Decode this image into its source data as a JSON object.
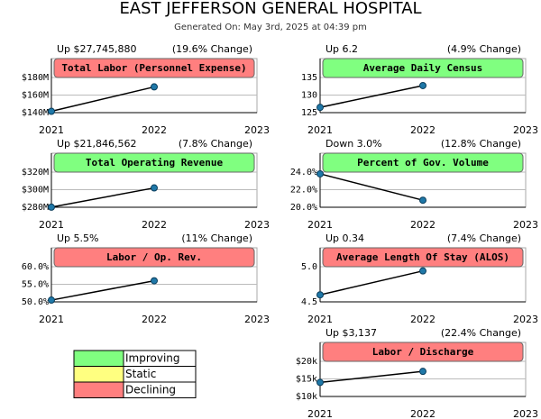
{
  "header": {
    "title": "EAST JEFFERSON GENERAL HOSPITAL",
    "subtitle": "Generated On: May 3rd, 2025 at 04:39 pm"
  },
  "chart_data": [
    {
      "type": "line",
      "title": "Total Labor (Personnel Expense)",
      "change": "Up $27,745,880",
      "change_pct": "(19.6% Change)",
      "status_color": "#ff7f7f",
      "color": "#000000",
      "marker_color": "#1f78a8",
      "categories": [
        "2021",
        "2022",
        "2023"
      ],
      "values": [
        141.5,
        169.3,
        null
      ],
      "ylim": [
        140,
        180
      ],
      "yticks": [
        {
          "value": 140,
          "label": "$140M"
        },
        {
          "value": 160,
          "label": "$160M"
        },
        {
          "value": 180,
          "label": "$180M"
        }
      ]
    },
    {
      "type": "line",
      "title": "Total Operating Revenue",
      "change": "Up $21,846,562",
      "change_pct": "(7.8% Change)",
      "status_color": "#80ff80",
      "color": "#000000",
      "marker_color": "#1f78a8",
      "categories": [
        "2021",
        "2022",
        "2023"
      ],
      "values": [
        280.1,
        302.0,
        null
      ],
      "ylim": [
        280,
        320
      ],
      "yticks": [
        {
          "value": 280,
          "label": "$280M"
        },
        {
          "value": 300,
          "label": "$300M"
        },
        {
          "value": 320,
          "label": "$320M"
        }
      ]
    },
    {
      "type": "line",
      "title": "Labor / Op. Rev.",
      "change": "Up 5.5%",
      "change_pct": "(11% Change)",
      "status_color": "#ff7f7f",
      "color": "#000000",
      "marker_color": "#1f78a8",
      "categories": [
        "2021",
        "2022",
        "2023"
      ],
      "values": [
        50.5,
        56.0,
        null
      ],
      "ylim": [
        50,
        60
      ],
      "yticks": [
        {
          "value": 50,
          "label": "50.0%"
        },
        {
          "value": 55,
          "label": "55.0%"
        },
        {
          "value": 60,
          "label": "60.0%"
        }
      ]
    },
    {
      "type": "line",
      "title": "Average Daily Census",
      "change": "Up 6.2",
      "change_pct": "(4.9% Change)",
      "status_color": "#80ff80",
      "color": "#000000",
      "marker_color": "#1f78a8",
      "categories": [
        "2021",
        "2022",
        "2023"
      ],
      "values": [
        126.5,
        132.7,
        null
      ],
      "ylim": [
        125,
        135
      ],
      "yticks": [
        125,
        130,
        135
      ]
    },
    {
      "type": "line",
      "title": "Percent of Gov. Volume",
      "change": "Down 3.0%",
      "change_pct": "(12.8% Change)",
      "status_color": "#80ff80",
      "color": "#000000",
      "marker_color": "#1f78a8",
      "categories": [
        "2021",
        "2022",
        "2023"
      ],
      "values": [
        23.8,
        20.8,
        null
      ],
      "ylim": [
        20,
        24
      ],
      "yticks": [
        {
          "value": 20,
          "label": "20.0%"
        },
        {
          "value": 22,
          "label": "22.0%"
        },
        {
          "value": 24,
          "label": "24.0%"
        }
      ]
    },
    {
      "type": "line",
      "title": "Average Length Of Stay (ALOS)",
      "change": "Up 0.34",
      "change_pct": "(7.4% Change)",
      "status_color": "#ff7f7f",
      "color": "#000000",
      "marker_color": "#1f78a8",
      "categories": [
        "2021",
        "2022",
        "2023"
      ],
      "values": [
        4.6,
        4.94,
        null
      ],
      "ylim": [
        4.5,
        5
      ],
      "yticks": [
        4.5,
        {
          "value": 5,
          "label": "5.0"
        }
      ]
    },
    {
      "type": "line",
      "title": "Labor / Discharge",
      "change": "Up $3,137",
      "change_pct": "(22.4% Change)",
      "status_color": "#ff7f7f",
      "color": "#000000",
      "marker_color": "#1f78a8",
      "categories": [
        "2021",
        "2022",
        "2023"
      ],
      "values": [
        14.0,
        17.14,
        null
      ],
      "ylim": [
        10,
        20
      ],
      "yticks": [
        {
          "value": 10,
          "label": "$10k"
        },
        {
          "value": 15,
          "label": "$15k"
        },
        {
          "value": 20,
          "label": "$20k"
        }
      ]
    }
  ],
  "legend": [
    {
      "label": "Improving",
      "color": "#80ff80"
    },
    {
      "label": "Static",
      "color": "#ffff80"
    },
    {
      "label": "Declining",
      "color": "#ff7f7f"
    }
  ]
}
